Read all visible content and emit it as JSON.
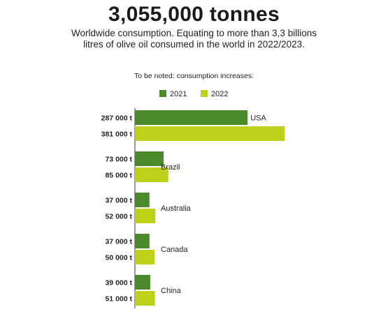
{
  "header": {
    "title": "3,055,000 tonnes",
    "subtitle": "Worldwide consumption. Equating to more than 3,3 billions litres of olive oil consumed in the world in 2022/2023.",
    "note": "To be noted: consumption increases:"
  },
  "colors": {
    "series_2021": "#4a8a2a",
    "series_2022": "#bdd01a"
  },
  "chart_data": {
    "type": "bar",
    "orientation": "horizontal",
    "categories": [
      "USA",
      "Brazil",
      "Australia",
      "Canada",
      "China"
    ],
    "series": [
      {
        "name": "2021",
        "values": [
          287000,
          73000,
          37000,
          37000,
          39000
        ],
        "labels": [
          "287 000 t",
          "73 000 t",
          "37 000 t",
          "37 000 t",
          "39 000 t"
        ]
      },
      {
        "name": "2022",
        "values": [
          381000,
          85000,
          52000,
          50000,
          51000
        ],
        "labels": [
          "381 000 t",
          "85 000 t",
          "52 000 t",
          "50 000 t",
          "51 000 t"
        ]
      }
    ],
    "legend": "top",
    "grid": false,
    "xlim": [
      0,
      381000
    ]
  }
}
